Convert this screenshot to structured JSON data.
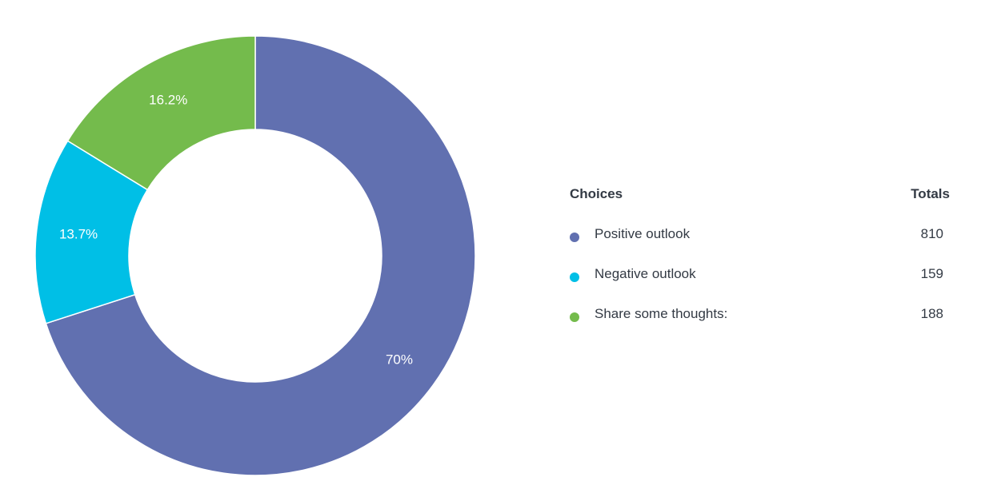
{
  "chart_data": {
    "type": "pie",
    "variant": "donut",
    "categories": [
      "Positive outlook",
      "Negative outlook",
      "Share some thoughts:"
    ],
    "values": [
      810,
      159,
      188
    ],
    "percent_labels": [
      "70%",
      "13.7%",
      "16.2%"
    ],
    "colors": [
      "#6170b0",
      "#00bfe6",
      "#74bb4c"
    ],
    "legend_position": "right"
  },
  "legend": {
    "header_choices": "Choices",
    "header_totals": "Totals",
    "rows": [
      {
        "label": "Positive outlook",
        "total": "810",
        "color": "#6170b0"
      },
      {
        "label": "Negative outlook",
        "total": "159",
        "color": "#00bfe6"
      },
      {
        "label": "Share some thoughts:",
        "total": "188",
        "color": "#74bb4c"
      }
    ]
  }
}
